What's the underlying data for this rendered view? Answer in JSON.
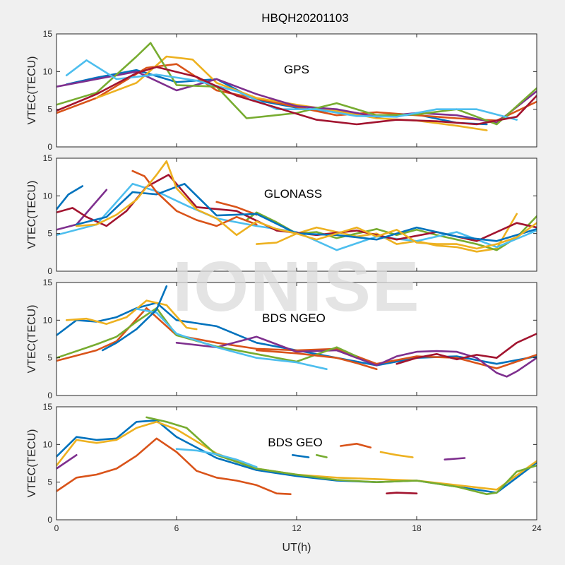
{
  "chart_data": {
    "type": "line",
    "title": "HBQH20201103",
    "watermark": "IONISE",
    "xlabel": "UT(h)",
    "xlim": [
      0,
      24
    ],
    "xticks": [
      "0",
      "6",
      "12",
      "18",
      "24"
    ],
    "palette": [
      "#0072BD",
      "#D95319",
      "#EDB120",
      "#7E2F8E",
      "#77AC30",
      "#4DBEEE",
      "#A2142F"
    ],
    "panels": [
      {
        "label": "GPS",
        "ylabel": "VTEC(TECU)",
        "ylim": [
          0,
          15
        ],
        "yticks": [
          "0",
          "5",
          "10",
          "15"
        ],
        "series": [
          {
            "x": [
              0.5,
              2,
              4,
              6,
              8,
              10,
              12,
              14,
              16,
              18,
              20,
              21.5
            ],
            "y": [
              8.3,
              9.2,
              10.2,
              8.6,
              9.0,
              6.2,
              5.2,
              4.6,
              4.0,
              4.3,
              3.2,
              3.0
            ]
          },
          {
            "x": [
              0,
              2,
              4.5,
              6,
              8,
              10,
              12,
              14,
              16,
              18,
              20,
              22,
              24
            ],
            "y": [
              4.5,
              6.5,
              10.5,
              11.0,
              7.5,
              6.4,
              5.3,
              4.2,
              4.6,
              4.2,
              3.8,
              3.5,
              6.0
            ]
          },
          {
            "x": [
              2,
              4,
              5.5,
              6.8,
              8,
              10,
              12,
              14,
              16,
              18,
              20,
              21.5
            ],
            "y": [
              6.5,
              8.5,
              12.0,
              11.6,
              8.5,
              6.5,
              5.6,
              4.8,
              3.8,
              3.5,
              2.8,
              2.2
            ]
          },
          {
            "x": [
              0,
              2,
              4,
              6,
              8,
              10,
              12,
              14,
              16,
              18,
              20,
              22,
              24
            ],
            "y": [
              8.0,
              9.0,
              10.0,
              7.5,
              9.0,
              7.0,
              5.4,
              5.0,
              4.0,
              4.5,
              4.2,
              3.2,
              7.4
            ]
          },
          {
            "x": [
              0,
              2,
              4,
              4.7,
              6,
              8,
              9.5,
              12,
              14,
              16,
              18,
              20,
              22,
              24
            ],
            "y": [
              5.6,
              7.2,
              12.0,
              13.8,
              8.2,
              8.0,
              3.8,
              4.5,
              5.8,
              4.2,
              4.3,
              5.0,
              3.0,
              7.8
            ]
          },
          {
            "x": [
              0.5,
              1.5,
              3,
              5,
              7,
              9,
              11,
              13,
              15,
              17,
              19,
              21,
              23
            ],
            "y": [
              9.5,
              11.5,
              9.0,
              9.6,
              8.8,
              7.4,
              5.0,
              5.0,
              4.1,
              4.0,
              5.0,
              5.0,
              3.6
            ]
          },
          {
            "x": [
              0,
              2,
              4,
              5,
              7,
              9,
              11,
              13,
              15,
              17,
              19,
              21,
              23,
              24
            ],
            "y": [
              4.8,
              7.0,
              9.8,
              10.6,
              9.3,
              6.8,
              5.2,
              3.6,
              3.0,
              3.6,
              3.4,
              3.0,
              4.0,
              6.8
            ]
          }
        ]
      },
      {
        "label": "GLONASS",
        "ylabel": "VTEC(TECU)",
        "ylim": [
          0,
          15
        ],
        "yticks": [
          "0",
          "5",
          "10",
          "15"
        ],
        "series": [
          {
            "x": [
              0,
              0.6,
              1.3
            ],
            "y": [
              8.2,
              10.2,
              11.3
            ]
          },
          {
            "x": [
              8,
              9,
              10
            ],
            "y": [
              9.2,
              8.5,
              7.5
            ]
          },
          {
            "x": [
              10,
              11,
              12,
              13,
              14,
              15,
              16,
              17,
              18,
              19,
              20,
              21,
              22,
              23
            ],
            "y": [
              3.6,
              3.8,
              5.0,
              5.8,
              5.2,
              4.6,
              5.0,
              3.6,
              4.0,
              3.4,
              3.2,
              2.6,
              3.0,
              7.6
            ]
          },
          {
            "x": [
              0,
              1,
              2.5
            ],
            "y": [
              5.5,
              6.2,
              10.8
            ]
          },
          {
            "x": [
              9.5,
              10,
              11,
              12,
              13,
              14,
              15,
              16,
              17,
              18,
              19,
              20,
              21,
              22,
              23,
              24
            ],
            "y": [
              6.8,
              7.8,
              6.5,
              5.0,
              5.2,
              4.4,
              5.0,
              5.6,
              4.8,
              5.5,
              4.8,
              4.2,
              3.6,
              2.8,
              4.5,
              7.3
            ]
          },
          {
            "x": [
              0,
              2,
              3.8,
              5,
              6.6,
              8,
              10,
              12,
              14,
              16,
              18,
              20,
              22,
              24
            ],
            "y": [
              4.8,
              6.2,
              11.6,
              10.6,
              8.6,
              7.0,
              6.0,
              5.2,
              2.8,
              4.6,
              4.0,
              5.2,
              3.2,
              5.4
            ]
          },
          {
            "x": [
              0,
              0.8,
              1.5,
              2.5,
              3.5,
              4.5,
              5.6,
              7,
              9,
              11,
              13,
              15,
              17,
              19,
              21,
              23,
              24
            ],
            "y": [
              7.8,
              8.4,
              7.2,
              6.0,
              8.0,
              11.2,
              12.8,
              8.5,
              8.0,
              5.4,
              4.8,
              5.4,
              4.2,
              5.2,
              4.0,
              6.4,
              5.8
            ]
          },
          {
            "x": [
              1,
              2.5,
              3.8,
              5,
              6.4,
              8,
              10,
              12,
              14,
              16,
              18,
              20,
              22,
              24
            ],
            "y": [
              6.2,
              7.2,
              10.5,
              10.2,
              11.6,
              7.4,
              7.6,
              5.0,
              4.8,
              4.2,
              5.8,
              4.6,
              4.0,
              5.6
            ]
          },
          {
            "x": [
              3.8,
              4.4,
              5,
              6,
              7,
              8,
              9,
              10
            ],
            "y": [
              13.3,
              12.6,
              10.5,
              8.0,
              6.8,
              6.0,
              7.2,
              6.2
            ]
          },
          {
            "x": [
              1,
              2,
              3,
              4,
              5,
              5.5,
              6,
              7,
              8,
              9,
              10,
              11,
              12,
              13,
              14,
              15,
              16,
              17,
              18,
              19,
              20,
              21,
              22,
              23,
              24
            ],
            "y": [
              6.0,
              6.2,
              7.5,
              9.5,
              12.8,
              14.6,
              11.0,
              8.2,
              7.0,
              4.8,
              6.6,
              5.6,
              5.0,
              4.2,
              5.0,
              5.8,
              4.6,
              5.5,
              3.8,
              3.6,
              3.6,
              3.0,
              3.6,
              4.5,
              6.4
            ]
          }
        ]
      },
      {
        "label": "BDS NGEO",
        "ylabel": "VTEC(TECU)",
        "ylim": [
          0,
          15
        ],
        "yticks": [
          "0",
          "5",
          "10",
          "15"
        ],
        "series": [
          {
            "x": [
              0,
              1,
              2,
              3,
              4,
              5,
              6,
              8,
              10,
              12,
              14,
              16,
              18,
              20,
              22,
              24
            ],
            "y": [
              8.0,
              10.0,
              9.8,
              10.4,
              11.6,
              12.3,
              10.0,
              9.2,
              7.0,
              6.0,
              5.0,
              4.0,
              5.0,
              5.2,
              4.2,
              5.2
            ]
          },
          {
            "x": [
              0,
              2,
              3,
              4.5,
              6,
              8,
              10,
              12,
              14,
              16,
              18,
              20,
              22,
              24
            ],
            "y": [
              4.6,
              6.0,
              7.2,
              11.6,
              8.0,
              7.0,
              6.2,
              6.0,
              6.2,
              4.2,
              5.2,
              5.0,
              3.6,
              5.4
            ]
          },
          {
            "x": [
              0.5,
              1.5,
              2.5,
              3.5,
              4.5,
              5.5,
              6.5,
              7
            ],
            "y": [
              10.0,
              10.2,
              9.5,
              10.4,
              12.6,
              12.0,
              9.0,
              8.8
            ]
          },
          {
            "x": [
              6,
              8,
              10,
              12,
              14,
              16,
              17,
              18,
              19,
              20,
              21,
              22,
              22.5,
              23,
              24
            ],
            "y": [
              7.0,
              6.4,
              7.8,
              5.8,
              6.0,
              4.0,
              5.2,
              5.8,
              5.9,
              5.8,
              5.0,
              3.0,
              2.5,
              3.2,
              5.0
            ]
          },
          {
            "x": [
              0,
              2,
              3,
              4,
              5,
              6,
              8,
              10,
              12,
              14,
              15
            ],
            "y": [
              5.0,
              6.8,
              7.8,
              9.8,
              11.6,
              8.0,
              6.5,
              5.5,
              4.5,
              6.4,
              5.2
            ]
          },
          {
            "x": [
              4,
              5,
              6,
              8,
              10,
              12,
              13.5
            ],
            "y": [
              11.5,
              11.0,
              8.2,
              6.4,
              5.0,
              4.4,
              3.5
            ]
          },
          {
            "x": [
              17,
              18,
              19,
              20,
              21,
              22,
              23,
              24
            ],
            "y": [
              4.2,
              5.0,
              5.5,
              4.8,
              5.4,
              5.0,
              7.0,
              8.2
            ]
          },
          {
            "x": [
              2.3,
              3,
              4,
              5,
              5.5
            ],
            "y": [
              6.0,
              7.0,
              8.8,
              11.4,
              14.5
            ]
          },
          {
            "x": [
              10,
              12,
              14,
              15,
              16
            ],
            "y": [
              6.0,
              5.6,
              5.0,
              4.3,
              3.5
            ]
          }
        ]
      },
      {
        "label": "BDS GEO",
        "ylabel": "VTEC(TECU)",
        "ylim": [
          0,
          15
        ],
        "yticks": [
          "0",
          "5",
          "10",
          "15"
        ],
        "series": [
          {
            "x": [
              0,
              1,
              2,
              3,
              4,
              5,
              6,
              8,
              10,
              12,
              14,
              16,
              18,
              20,
              22,
              23,
              24
            ],
            "y": [
              8.4,
              11.0,
              10.6,
              10.8,
              13.0,
              13.2,
              11.0,
              8.2,
              6.6,
              5.8,
              5.2,
              5.0,
              5.2,
              4.4,
              3.6,
              5.6,
              7.6
            ]
          },
          {
            "x": [
              0,
              1,
              2,
              3,
              4,
              5,
              6,
              7,
              8,
              9,
              10,
              11,
              11.7
            ],
            "y": [
              3.8,
              5.6,
              6.0,
              6.8,
              8.5,
              10.8,
              9.0,
              6.5,
              5.6,
              5.2,
              4.6,
              3.5,
              3.4
            ]
          },
          {
            "x": [
              0,
              1,
              2,
              3,
              4,
              5,
              6,
              8,
              10,
              12,
              14,
              16,
              18,
              20,
              22,
              24
            ],
            "y": [
              7.2,
              10.6,
              10.2,
              10.6,
              12.2,
              13.0,
              12.0,
              8.8,
              6.8,
              6.0,
              5.6,
              5.4,
              5.2,
              4.6,
              4.0,
              7.8
            ]
          },
          {
            "x": [
              0,
              1
            ],
            "y": [
              6.8,
              8.6
            ]
          },
          {
            "x": [
              4.5,
              5.5,
              6.5,
              8,
              10,
              12,
              14,
              16,
              18,
              20,
              21.5,
              22,
              23,
              24
            ],
            "y": [
              13.6,
              13.0,
              12.2,
              8.6,
              6.8,
              6.0,
              5.3,
              5.0,
              5.2,
              4.4,
              3.4,
              3.6,
              6.4,
              7.2
            ]
          },
          {
            "x": [
              6,
              7,
              8,
              9,
              10
            ],
            "y": [
              9.4,
              9.2,
              8.7,
              8.0,
              7.0
            ]
          },
          {
            "x": [
              16.5,
              17,
              18
            ],
            "y": [
              3.5,
              3.6,
              3.5
            ]
          },
          {
            "x": [
              11.8,
              12.6
            ],
            "y": [
              8.6,
              8.3
            ]
          },
          {
            "x": [
              14.2,
              15,
              15.7
            ],
            "y": [
              9.8,
              10.1,
              9.6
            ]
          },
          {
            "x": [
              16.2,
              17,
              17.8
            ],
            "y": [
              9.0,
              8.6,
              8.3
            ]
          },
          {
            "x": [
              19.4,
              20.4
            ],
            "y": [
              8.0,
              8.2
            ]
          },
          {
            "x": [
              13,
              13.5
            ],
            "y": [
              8.6,
              8.3
            ]
          }
        ]
      }
    ]
  }
}
